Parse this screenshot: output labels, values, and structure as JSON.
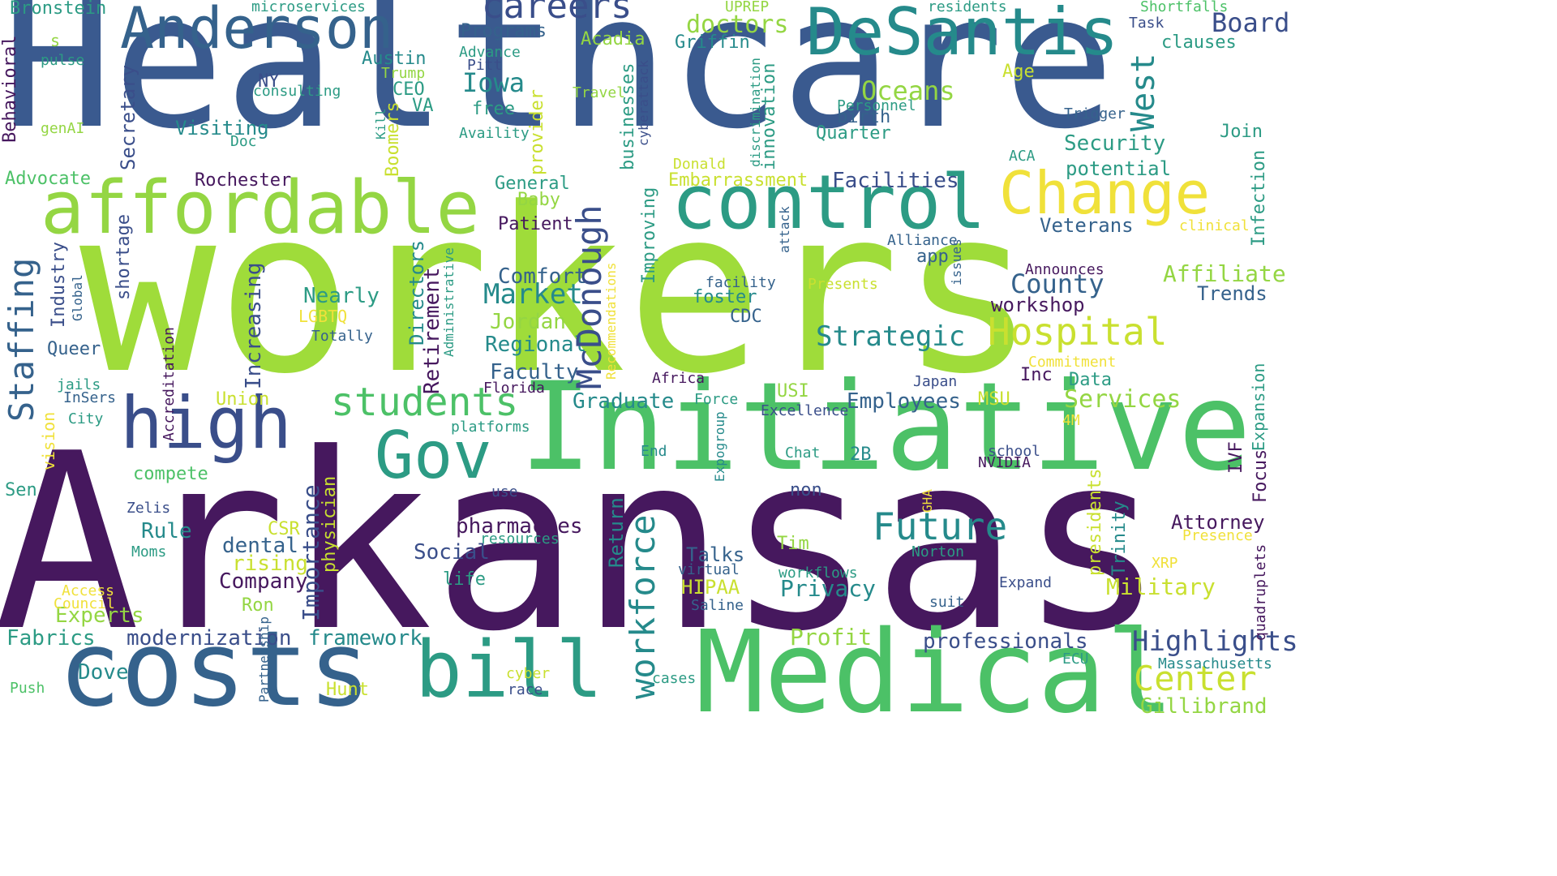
{
  "palette": {
    "dark_purple": "#46185e",
    "navy": "#3a4e8a",
    "slate_blue": "#35628c",
    "teal": "#258a8b",
    "sea_green": "#2c9b84",
    "green": "#4cc167",
    "lime": "#94d643",
    "yellow": "#f0e13a"
  },
  "words": {
    "healthcare": "Healthcare",
    "workers": "workers",
    "arkansas": "Arkansas",
    "initiative": "Initiative",
    "medical": "Medical",
    "costs": "costs",
    "affordable": "affordable",
    "control": "control",
    "desantis": "DeSantis",
    "anderson": "Anderson",
    "change": "Change",
    "bill": "bill",
    "high": "high",
    "gov": "Gov",
    "students": "students",
    "hospital": "Hospital",
    "future": "Future",
    "workforce": "workforce",
    "mcdonough": "McDonough",
    "staffing": "Staffing",
    "careers": "careers",
    "west": "West",
    "board": "Board",
    "center": "Center",
    "highlights": "Highlights",
    "strategic": "Strategic",
    "market": "Market",
    "county": "County",
    "oceans": "Oceans",
    "iowa": "Iowa",
    "importance": "Importance",
    "services": "Services",
    "doctors": "doctors",
    "increasing": "Increasing",
    "retirement": "Retirement",
    "directors": "Directors",
    "return": "Return",
    "affiliate": "Affiliate",
    "military": "Military",
    "pharmacies": "pharmacies",
    "security": "Security",
    "profit": "Profit",
    "privacy": "Privacy",
    "facilities": "Facilities",
    "comfort": "Comfort",
    "nearly": "Nearly",
    "regional": "Regional",
    "jordan": "Jordan",
    "faculty": "Faculty",
    "graduate": "Graduate",
    "employees": "Employees",
    "dental": "dental",
    "social": "Social",
    "company": "Company",
    "rising": "rising",
    "rule": "Rule",
    "experts": "Experts",
    "framework": "framework",
    "modernization": "modernization",
    "dove": "Dove",
    "fabrics": "Fabrics",
    "gillibrand": "Gillibrand",
    "professionals": "professionals",
    "attorney": "Attorney",
    "talks": "Talks",
    "hipaa": "HIPAA",
    "potential": "potential",
    "trends": "Trends",
    "veterans": "Veterans",
    "workshop": "workshop",
    "visiting": "Visiting",
    "secretary": "Secretary",
    "behavioral": "Behavioral",
    "boomers": "Boomers",
    "provider": "provider",
    "businesses": "businesses",
    "improving": "Improving",
    "innovation": "innovation",
    "infection": "Infection",
    "expansion": "Expansion",
    "industry": "Industry",
    "shortage": "shortage",
    "physician": "physician",
    "presidents": "presidents",
    "trinity": "Trinity",
    "focus": "Focus",
    "ivf": "IVF",
    "embarrassment": "Embarrassment",
    "rochester": "Rochester",
    "advocate": "Advocate",
    "general": "General",
    "baby": "Baby",
    "patient": "Patient",
    "programs": "Programs",
    "acadia": "Acadia",
    "austin": "Austin",
    "griffin": "Griffin",
    "ceo": "CEO",
    "va": "VA",
    "free": "free",
    "birth": "birth",
    "quarter": "Quarter",
    "age": "Age",
    "join": "Join",
    "clauses": "clauses",
    "app": "app",
    "foster": "foster",
    "cdc": "CDC",
    "inc": "Inc",
    "data": "Data",
    "usi": "USI",
    "msu": "MSU",
    "union": "Union",
    "queer": "Queer",
    "lgbtq": "LGBTQ",
    "compete": "compete",
    "sen": "Sen",
    "vision": "vision",
    "csr": "CSR",
    "tim": "Tim",
    "ron": "Ron",
    "hunt": "Hunt",
    "life": "life",
    "push": "Push",
    "ny": "NY",
    "bronstein": "Bronstein",
    "microservices": "microservices",
    "uprep": "UPREP",
    "residents": "residents",
    "shortfalls": "Shortfalls",
    "task": "Task",
    "s_char": "s",
    "pulse": "pulse",
    "consulting": "consulting",
    "genai": "genAI",
    "doc": "Doc",
    "trump": "Trump",
    "pitt": "Pitt",
    "advance": "Advance",
    "travel": "Travel",
    "availity": "Availity",
    "kill": "Kill",
    "cyberattack": "cyberattack",
    "discrimination": "discrimination",
    "personnel": "Personnel",
    "trigger": "Trigger",
    "aca": "ACA",
    "donald": "Donald",
    "clinical": "clinical",
    "alliance": "Alliance",
    "attack": "attack",
    "issues": "issues",
    "announces": "Announces",
    "administrative": "Administrative",
    "recommendations": "Recommendations",
    "facility": "facility",
    "presents": "Presents",
    "global": "Global",
    "totally": "Totally",
    "accreditation": "Accreditation",
    "commitment": "Commitment",
    "africa": "Africa",
    "japan": "Japan",
    "florida": "Florida",
    "force": "Force",
    "excellence": "Excellence",
    "four_m": "4M",
    "jails": "jails",
    "insers": "InSers",
    "city": "City",
    "platforms": "platforms",
    "end": "End",
    "chat": "Chat",
    "two_b": "2B",
    "school": "school",
    "nvidia": "NVIDIA",
    "expogroup": "Expogroup",
    "non": "non",
    "use": "use",
    "gha": "GHA",
    "zelis": "Zelis",
    "resources": "resources",
    "presence": "Presence",
    "moms": "Moms",
    "xrp": "XRP",
    "norton": "Norton",
    "quadruplets": "quadruplets",
    "virtual": "virtual",
    "workflows": "workflows",
    "access": "Access",
    "council": "Council",
    "saline": "Saline",
    "expand": "Expand",
    "suit": "suit",
    "partnership": "Partnership",
    "ecu": "ECU",
    "massachusetts": "Massachusetts",
    "cyber": "cyber",
    "cases": "cases",
    "race": "race"
  }
}
